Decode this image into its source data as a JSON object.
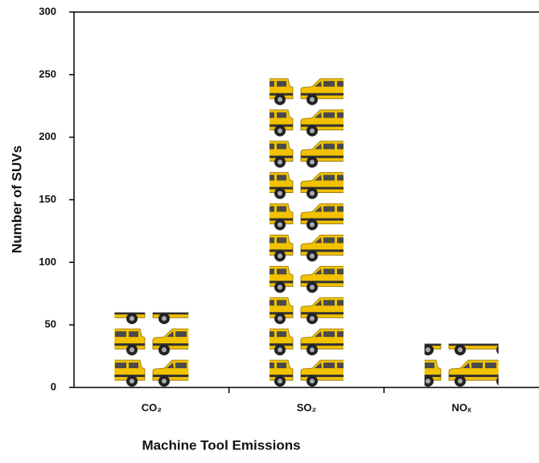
{
  "chart_data": {
    "type": "bar",
    "x_label": "Machine Tool Emissions",
    "y_label": "Number of SUVs",
    "categories": [
      "CO₂",
      "SO₂",
      "NOₓ"
    ],
    "values": [
      60,
      248,
      35
    ],
    "color": "#f2c200",
    "ylim": [
      0,
      300
    ],
    "yticks": [
      0,
      50,
      100,
      150,
      200,
      250,
      300
    ],
    "grid": false
  }
}
